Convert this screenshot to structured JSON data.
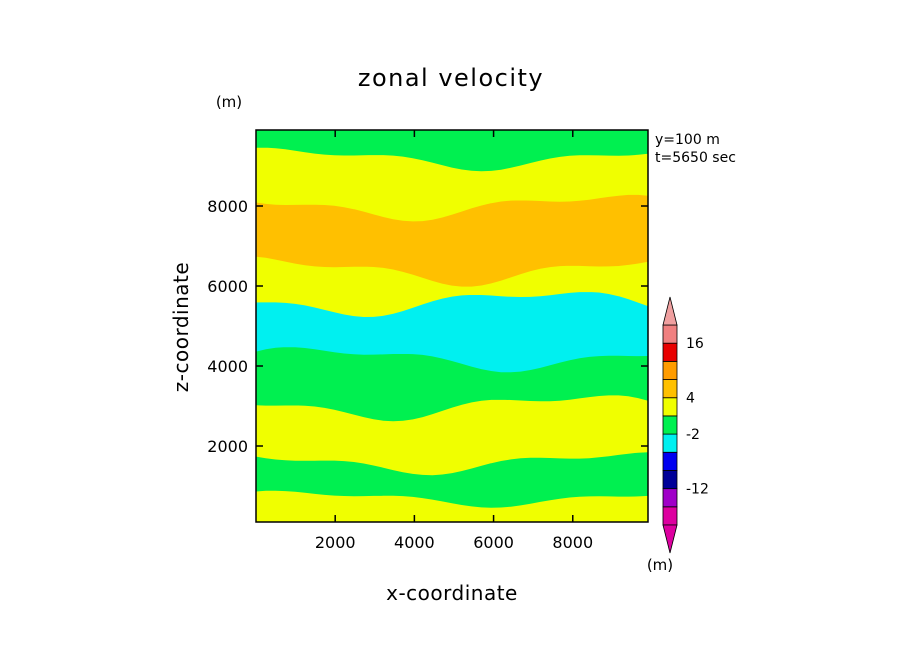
{
  "chart_data": {
    "type": "heatmap",
    "title": "zonal velocity",
    "xlabel": "x-coordinate",
    "ylabel": "z-coordinate",
    "x_unit": "(m)",
    "y_unit": "(m)",
    "colorbar_unit": "(m)",
    "annotations": [
      "y=100 m",
      "t=5650 sec"
    ],
    "xlim": [
      0,
      9900
    ],
    "ylim": [
      100,
      9900
    ],
    "x_ticks": [
      2000,
      4000,
      6000,
      8000
    ],
    "y_ticks": [
      2000,
      4000,
      6000,
      8000
    ],
    "grid": false,
    "legend_position": "right",
    "colorbar": {
      "levels": [
        -20,
        -16,
        -12,
        -8,
        -4,
        -2,
        0,
        4,
        8,
        12,
        16,
        20
      ],
      "labels": [
        "16",
        "4",
        "-2",
        "-12"
      ],
      "label_levels": [
        16,
        4,
        -2,
        -12
      ],
      "colors": [
        "#dd00a0",
        "#a000c8",
        "#000098",
        "#0000f0",
        "#00f0f0",
        "#00f050",
        "#f0ff00",
        "#ffc000",
        "#ff9c00",
        "#e80000",
        "#f08080"
      ],
      "under_color": "#dd00a0",
      "over_color": "#f0a0a0"
    },
    "layers_bottom_to_top": [
      {
        "z_range": [
          100,
          700
        ],
        "value": 2,
        "color": "#f0ff00"
      },
      {
        "z_range": [
          700,
          1600
        ],
        "value": -1,
        "color": "#00f050"
      },
      {
        "z_range": [
          1600,
          3000
        ],
        "value": 2,
        "color": "#f0ff00"
      },
      {
        "z_range": [
          3000,
          4200
        ],
        "value": -1,
        "color": "#00f050"
      },
      {
        "z_range": [
          4200,
          5600
        ],
        "value": -3,
        "color": "#00f0f0"
      },
      {
        "z_range": [
          5600,
          6400
        ],
        "value": 2,
        "color": "#f0ff00"
      },
      {
        "z_range": [
          6400,
          8000
        ],
        "value": 6,
        "color": "#ffc000"
      },
      {
        "z_range": [
          8000,
          9200
        ],
        "value": 2,
        "color": "#f0ff00"
      },
      {
        "z_range": [
          9200,
          9900
        ],
        "value": -1,
        "color": "#00f050"
      }
    ]
  }
}
